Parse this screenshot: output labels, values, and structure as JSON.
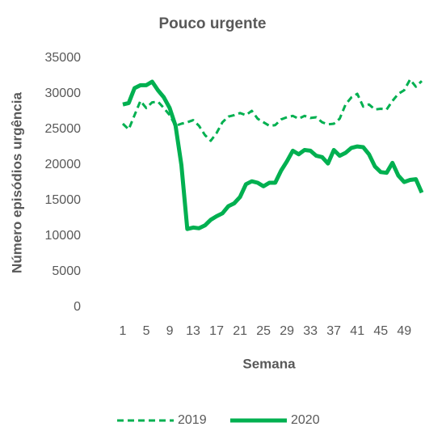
{
  "chart_data": {
    "type": "line",
    "title": "Pouco urgente",
    "title_color": "#00b050",
    "x_label": "Semana",
    "y_label": "Número episódios urgência",
    "x": [
      1,
      2,
      3,
      4,
      5,
      6,
      7,
      8,
      9,
      10,
      11,
      12,
      13,
      14,
      15,
      16,
      17,
      18,
      19,
      20,
      21,
      22,
      23,
      24,
      25,
      26,
      27,
      28,
      29,
      30,
      31,
      32,
      33,
      34,
      35,
      36,
      37,
      38,
      39,
      40,
      41,
      42,
      43,
      44,
      45,
      46,
      47,
      48,
      49,
      50,
      51,
      52
    ],
    "xlim": [
      1,
      52
    ],
    "xticks": [
      1,
      5,
      9,
      13,
      17,
      21,
      25,
      29,
      33,
      37,
      41,
      45,
      49
    ],
    "ylim": [
      0,
      35000
    ],
    "yticks": [
      0,
      5000,
      10000,
      15000,
      20000,
      25000,
      30000,
      35000
    ],
    "grid": false,
    "legend": "bottom",
    "series": [
      {
        "name": "2019",
        "color": "#00b050",
        "dashed": true,
        "values": [
          25800,
          25000,
          27000,
          29000,
          28000,
          28800,
          28900,
          28000,
          27000,
          25500,
          25800,
          26000,
          26300,
          25500,
          24200,
          23400,
          24500,
          26000,
          26800,
          27000,
          27300,
          27000,
          27600,
          26500,
          26000,
          25500,
          25600,
          26400,
          26700,
          26900,
          26500,
          26900,
          26600,
          26700,
          26000,
          25700,
          25800,
          26500,
          28500,
          29500,
          30000,
          28200,
          28500,
          27800,
          27900,
          27800,
          29000,
          30000,
          30500,
          32000,
          31000,
          31800
        ]
      },
      {
        "name": "2020",
        "color": "#00b050",
        "dashed": false,
        "values": [
          28500,
          28700,
          30800,
          31200,
          31200,
          31700,
          30500,
          29500,
          28000,
          25500,
          20000,
          11000,
          11200,
          11100,
          11500,
          12300,
          12800,
          13200,
          14200,
          14600,
          15500,
          17300,
          17700,
          17500,
          17000,
          17500,
          17500,
          19200,
          20500,
          22000,
          21500,
          22100,
          22000,
          21300,
          21100,
          20200,
          22100,
          21300,
          21700,
          22400,
          22600,
          22500,
          21500,
          19800,
          19000,
          18900,
          20300,
          18500,
          17600,
          17900,
          18000,
          16100
        ]
      }
    ]
  }
}
